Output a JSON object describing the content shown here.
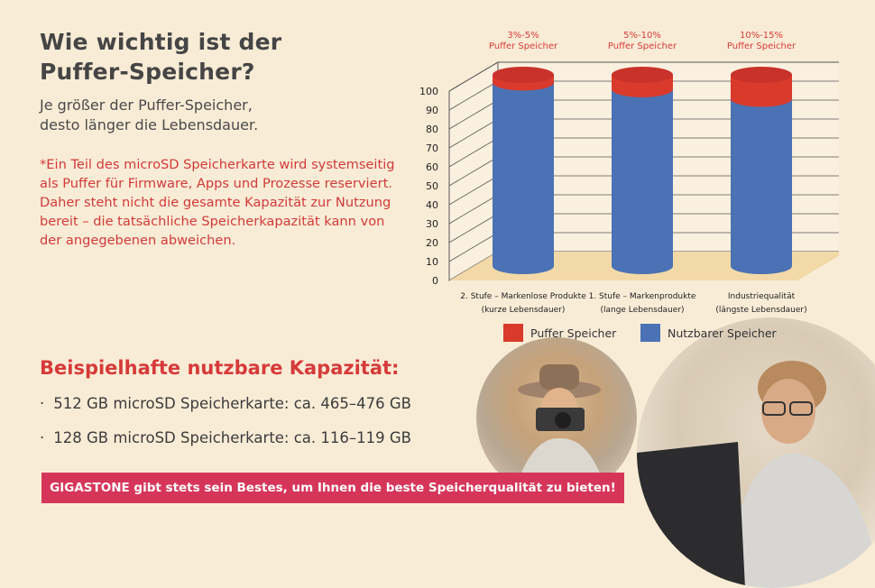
{
  "heading": {
    "line1": "Wie wichtig ist der",
    "line2": "Puffer-Speicher?"
  },
  "subheading": {
    "line1": "Je größer der Puffer-Speicher,",
    "line2": "desto länger die Lebensdauer."
  },
  "note": "*Ein Teil des microSD Speicherkarte wird systemseitig als Puffer für Firmware, Apps und Prozesse reserviert. Daher steht nicht die gesamte Kapazität zur Nutzung bereit – die tatsächliche Speicherkapazität kann von der angegebenen abweichen.",
  "capacity": {
    "title": "Beispielhafte nutzbare Kapazität:",
    "bullet_symbol": "·",
    "items": [
      "512 GB microSD Speicherkarte: ca. 465–476 GB",
      "128 GB microSD Speicherkarte: ca. 116–119 GB"
    ]
  },
  "banner": "GIGASTONE gibt stets sein Bestes, um Ihnen die beste Speicherqualität zu bieten!",
  "colors": {
    "puffer": "#d93a2b",
    "nutzbar": "#4a72b4",
    "floor": "#f3d9a8",
    "accent": "#d63a3a"
  },
  "chart_data": {
    "type": "bar",
    "style": "3d-cylinder-stacked",
    "ylim": [
      0,
      100
    ],
    "yticks": [
      0,
      10,
      20,
      30,
      40,
      50,
      60,
      70,
      80,
      90,
      100
    ],
    "categories": [
      [
        "2. Stufe – Markenlose Produkte",
        "(kurze Lebensdauer)"
      ],
      [
        "1. Stufe – Markenprodukte",
        "(lange Lebensdauer)"
      ],
      [
        "Industriequalität",
        "(längste Lebensdauer)"
      ]
    ],
    "top_labels": [
      [
        "3%-5%",
        "Puffer Speicher"
      ],
      [
        "5%-10%",
        "Puffer Speicher"
      ],
      [
        "10%-15%",
        "Puffer Speicher"
      ]
    ],
    "series": [
      {
        "name": "Nutzbarer Speicher",
        "values": [
          96,
          92.5,
          87.5
        ]
      },
      {
        "name": "Puffer Speicher",
        "values": [
          4,
          7.5,
          12.5
        ]
      }
    ],
    "legend": {
      "items": [
        "Puffer Speicher",
        "Nutzbarer Speicher"
      ],
      "placement": "bottom"
    },
    "grid": true
  }
}
